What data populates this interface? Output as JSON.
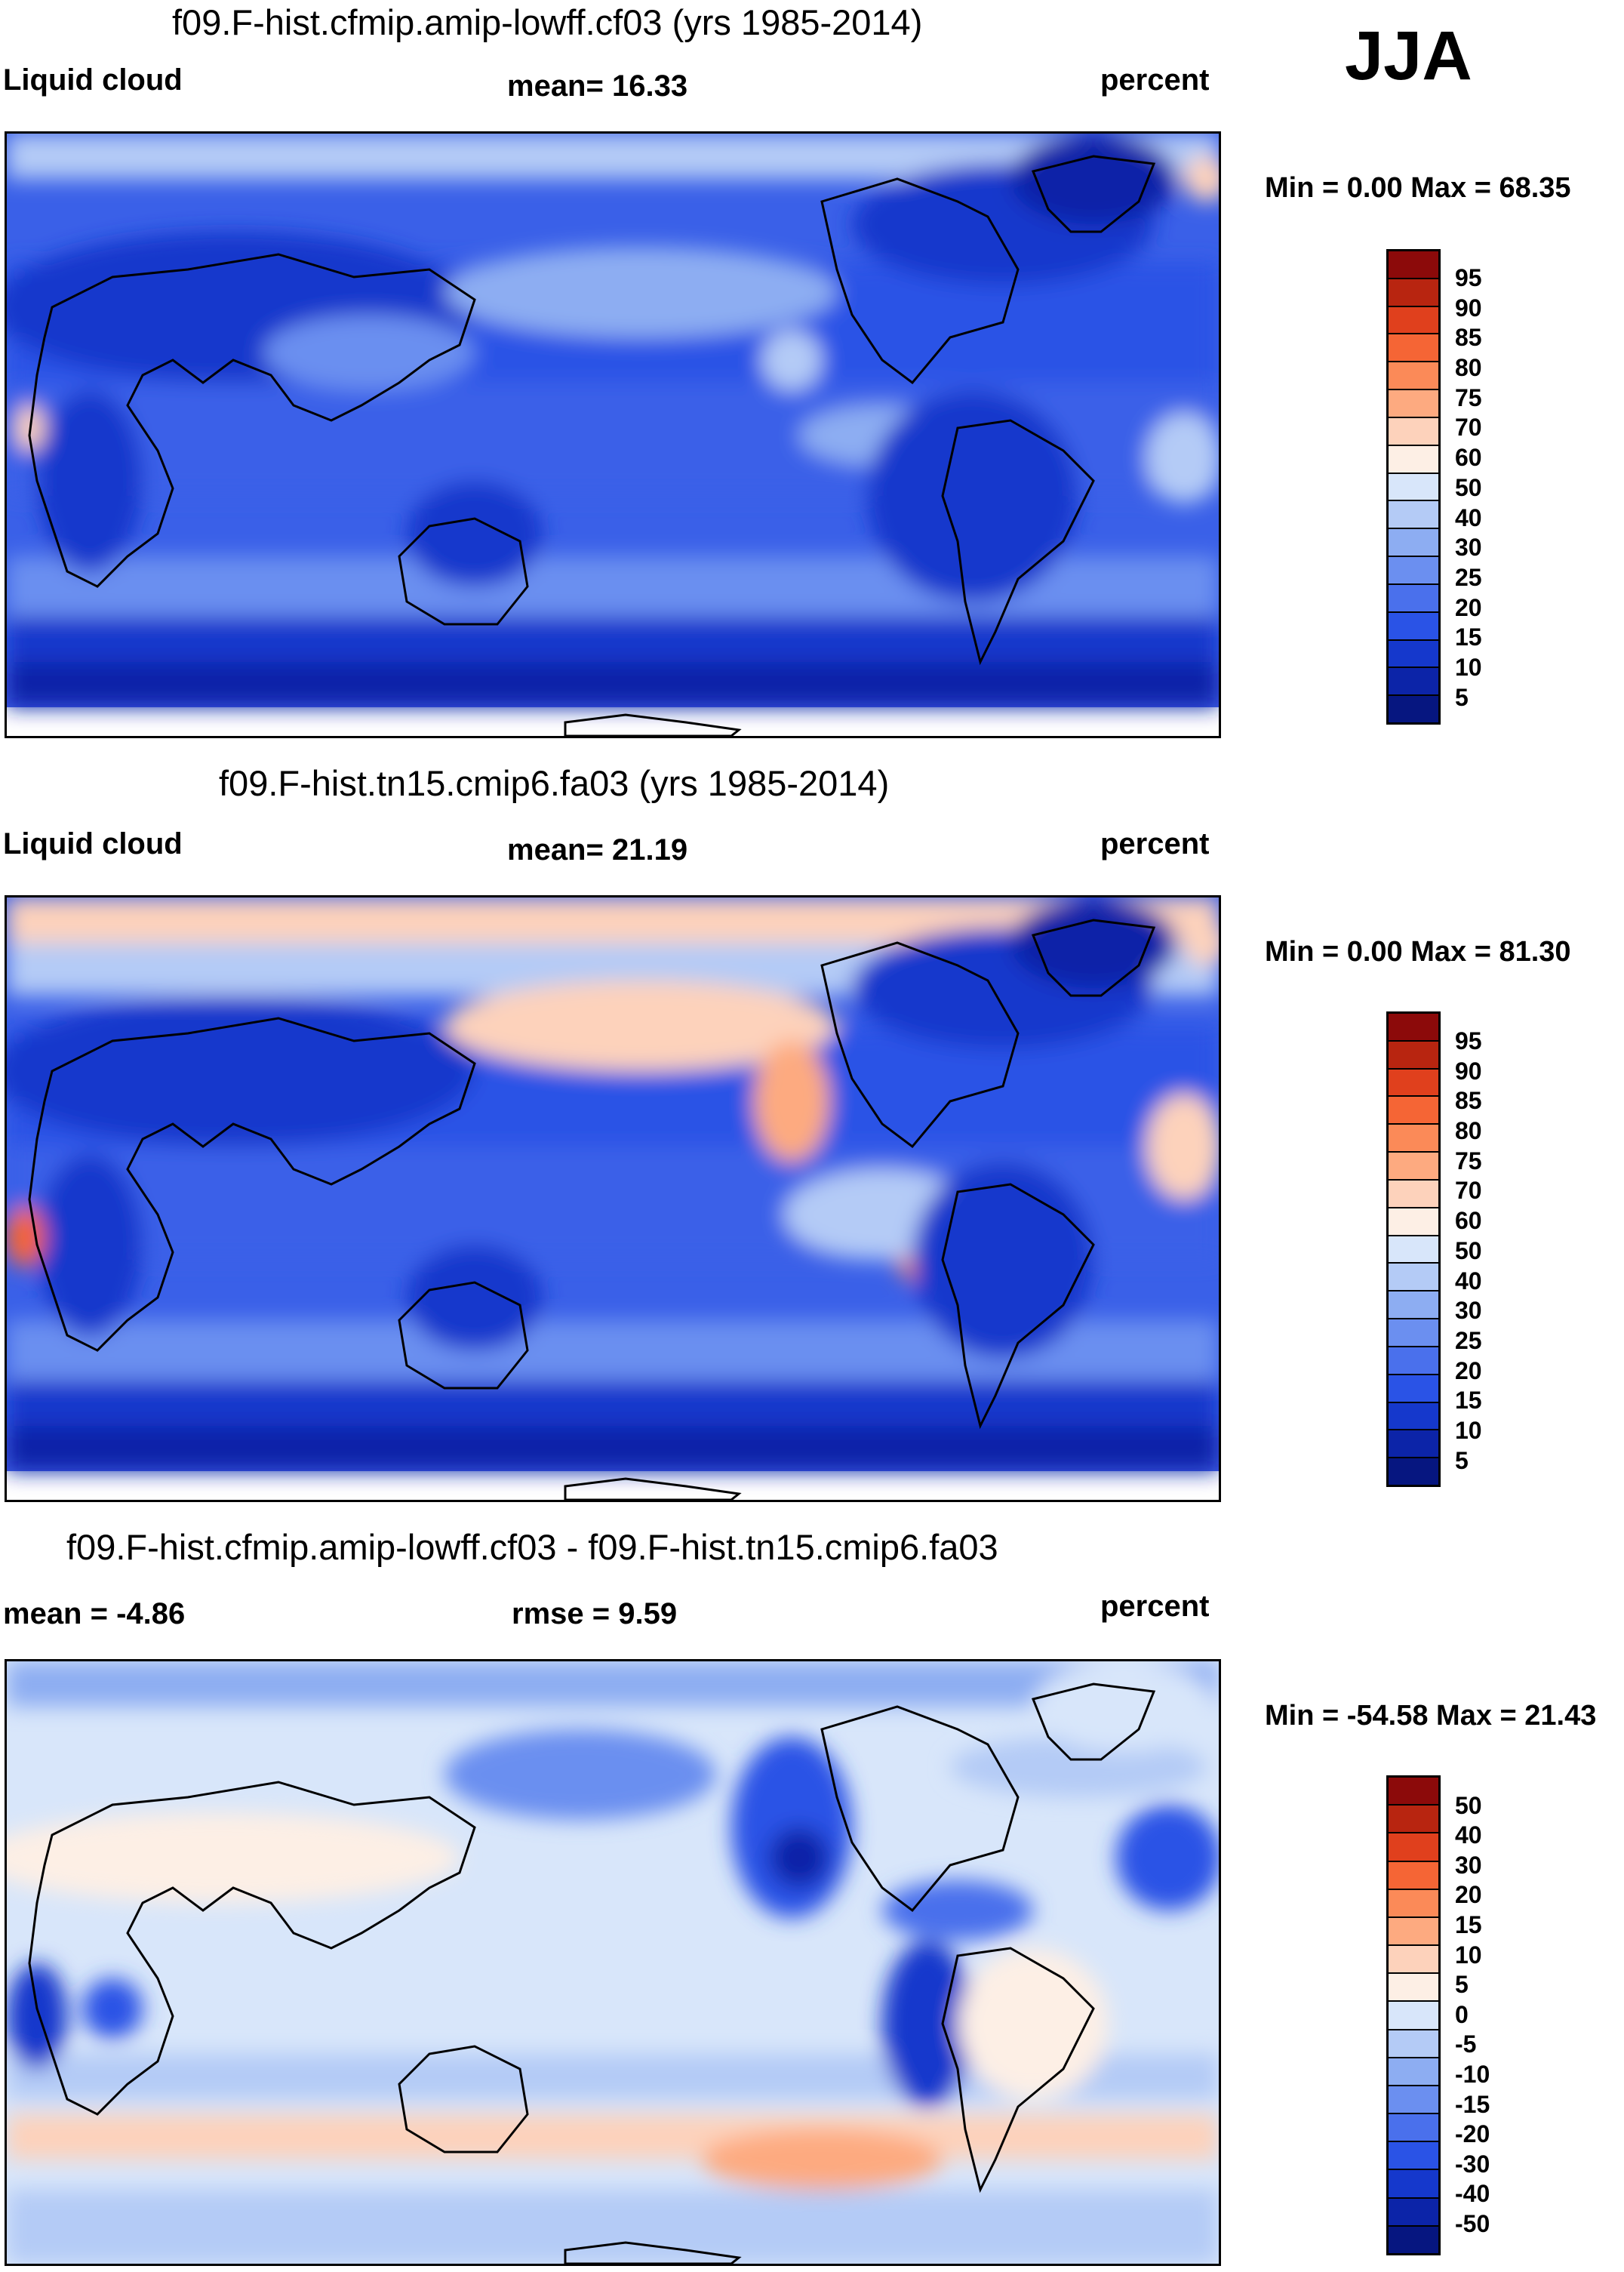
{
  "season": "JJA",
  "panels": [
    {
      "title": "f09.F-hist.cfmip.amip-lowff.cf03 (yrs 1985-2014)",
      "left_label": "Liquid cloud",
      "center_label": "mean=  16.33",
      "right_label": "percent",
      "minmax": "Min =   0.00 Max =  68.35",
      "colorbar": {
        "colors": [
          "#8c0a0a",
          "#b82510",
          "#e0401d",
          "#f56535",
          "#fb8a58",
          "#fdaa80",
          "#fdd2bb",
          "#fdefe5",
          "#d8e6fa",
          "#b4cbf6",
          "#8dadf2",
          "#6b8ff0",
          "#4a70ec",
          "#2a53e6",
          "#1538cc",
          "#0c24a8",
          "#061680"
        ],
        "labels": [
          "95",
          "90",
          "85",
          "80",
          "75",
          "70",
          "60",
          "50",
          "40",
          "30",
          "25",
          "20",
          "15",
          "10",
          "5"
        ]
      }
    },
    {
      "title": "f09.F-hist.tn15.cmip6.fa03 (yrs 1985-2014)",
      "left_label": "Liquid cloud",
      "center_label": "mean=  21.19",
      "right_label": "percent",
      "minmax": "Min =   0.00 Max =  81.30",
      "colorbar": {
        "colors": [
          "#8c0a0a",
          "#b82510",
          "#e0401d",
          "#f56535",
          "#fb8a58",
          "#fdaa80",
          "#fdd2bb",
          "#fdefe5",
          "#d8e6fa",
          "#b4cbf6",
          "#8dadf2",
          "#6b8ff0",
          "#4a70ec",
          "#2a53e6",
          "#1538cc",
          "#0c24a8",
          "#061680"
        ],
        "labels": [
          "95",
          "90",
          "85",
          "80",
          "75",
          "70",
          "60",
          "50",
          "40",
          "30",
          "25",
          "20",
          "15",
          "10",
          "5"
        ]
      }
    },
    {
      "title": "f09.F-hist.cfmip.amip-lowff.cf03 - f09.F-hist.tn15.cmip6.fa03",
      "left_label": "mean =  -4.86",
      "center_label": "rmse =    9.59",
      "right_label": "percent",
      "minmax": "Min = -54.58 Max =  21.43",
      "colorbar": {
        "colors": [
          "#8c0a0a",
          "#b82510",
          "#e0401d",
          "#f56535",
          "#fb8a58",
          "#fdaa80",
          "#fdd2bb",
          "#fdefe5",
          "#d8e6fa",
          "#b4cbf6",
          "#8dadf2",
          "#6b8ff0",
          "#4a70ec",
          "#2a53e6",
          "#1538cc",
          "#0c24a8",
          "#061680"
        ],
        "labels": [
          "50",
          "40",
          "30",
          "20",
          "15",
          "10",
          "5",
          "0",
          "-5",
          "-10",
          "-15",
          "-20",
          "-30",
          "-40",
          "-50"
        ]
      }
    }
  ]
}
